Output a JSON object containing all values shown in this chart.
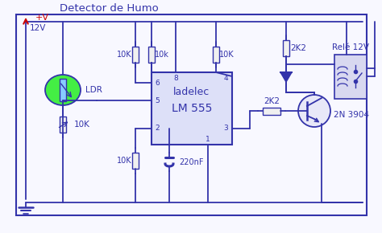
{
  "title": "Detector de Humo",
  "bg_color": "#f8f8ff",
  "wire_color": "#3333aa",
  "text_color": "#3333aa",
  "red_color": "#cc0000",
  "ldr_fill": "#44ee44",
  "ldr_bar_fill": "#88ccff",
  "chip_fill": "#dde0f8",
  "transistor_fill": "#e8e8f8",
  "relay_fill": "#d8d8f0",
  "resistor_fill": "#f0f0f0",
  "title_fontsize": 9.5,
  "label_fontsize": 7.5,
  "small_fontsize": 6.5,
  "chip_label1": "ladelec",
  "chip_label2": "LM 555",
  "transistor_label": "2N 3904",
  "relay_label": "Relé 12V",
  "voltage_label": "+V",
  "voltage_value": "12V",
  "ldr_label": "LDR",
  "r1_label": "10K",
  "r2_label": "10k",
  "r3_label": "10K",
  "r4_label": "2K2",
  "r5_label": "2K2",
  "r6_label": "10K",
  "r7_label": "10K",
  "c1_label": "220nF",
  "pin1": "1",
  "pin2": "2",
  "pin3": "3",
  "pin4": "4",
  "pin5": "5",
  "pin6": "6",
  "pin8": "8"
}
